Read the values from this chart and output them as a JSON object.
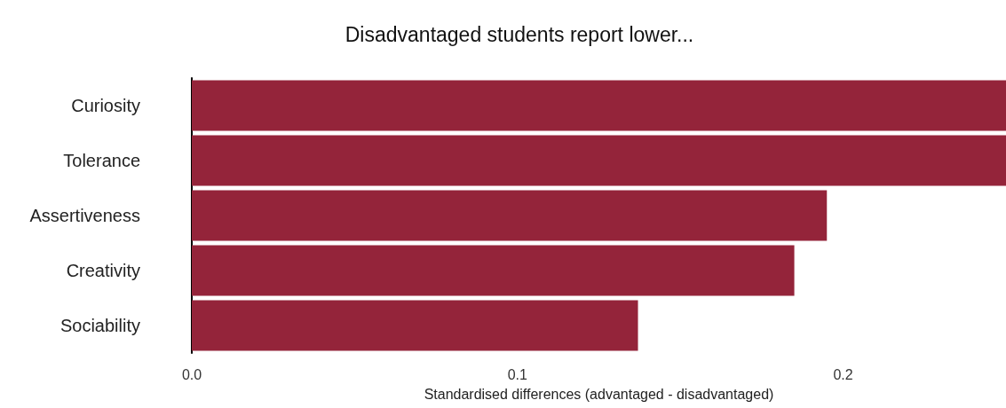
{
  "chart_data": {
    "type": "bar",
    "orientation": "horizontal",
    "title": "Disadvantaged students report lower...",
    "xlabel": "Standardised differences (advantaged - disadvantaged)",
    "categories": [
      "Curiosity",
      "Tolerance",
      "Assertiveness",
      "Creativity",
      "Sociability"
    ],
    "values": [
      0.25,
      0.25,
      0.195,
      0.185,
      0.137
    ],
    "color": "#94243a",
    "xlim": [
      0,
      0.25
    ],
    "xticks": [
      {
        "value": 0,
        "label": "0.0"
      },
      0.1,
      0.2
    ],
    "grid": false
  }
}
